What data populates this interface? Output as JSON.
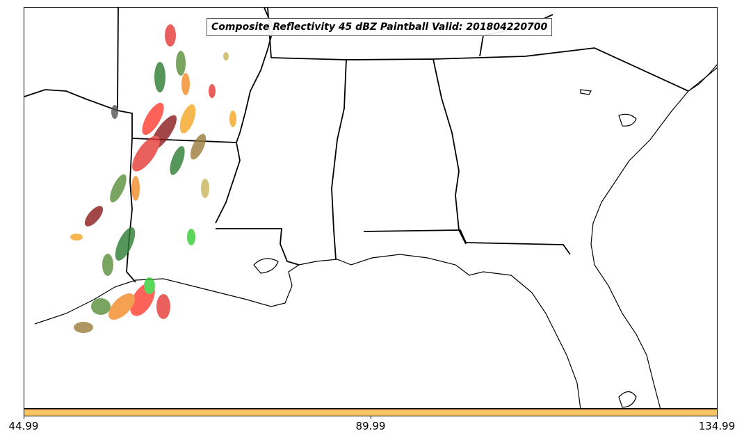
{
  "title": "Composite Reflectivity 45 dBZ Paintball Valid: 201804220700",
  "colorbar": {
    "color": "#f9c464",
    "ticks": [
      "44.99",
      "89.99",
      "134.99"
    ]
  },
  "colors": {
    "coastline": "#000000",
    "state_border": "#000000",
    "paintball": [
      "#2e7d32",
      "#5a8f3a",
      "#e53935",
      "#ff3b30",
      "#f28c28",
      "#f5a623",
      "#8b1a1a",
      "#9a7b3a",
      "#33cc33",
      "#c9b458",
      "#555555"
    ]
  }
}
